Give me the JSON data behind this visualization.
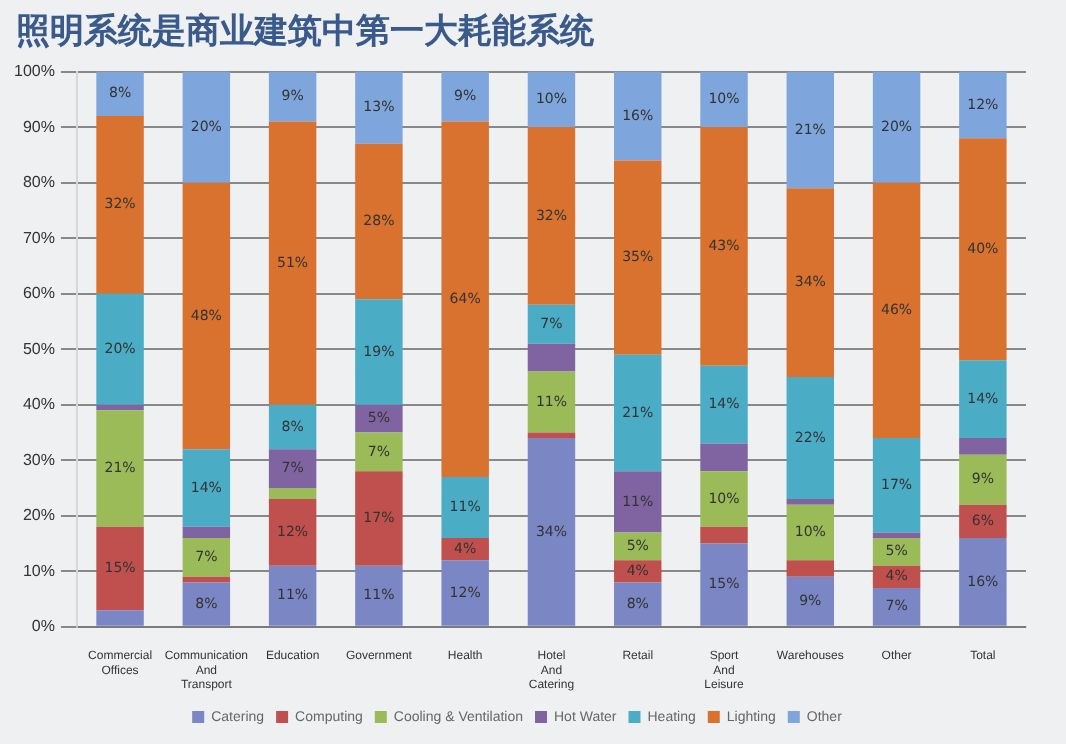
{
  "chart_data": {
    "type": "bar",
    "stacked": true,
    "title": "照明系统是商业建筑中第一大耗能系统",
    "categories": [
      "Commercial Offices",
      "Communication And Transport",
      "Education",
      "Government",
      "Health",
      "Hotel And Catering",
      "Retail",
      "Sport And Leisure",
      "Warehouses",
      "Other",
      "Total"
    ],
    "series": [
      {
        "name": "Catering",
        "color": "#7b86c4",
        "values": [
          3,
          8,
          11,
          11,
          12,
          34,
          8,
          15,
          9,
          7,
          16
        ],
        "value_labels": [
          null,
          "8%",
          "11%",
          "11%",
          "12%",
          "34%",
          "8%",
          "15%",
          "9%",
          "7%",
          "16%"
        ]
      },
      {
        "name": "Computing",
        "color": "#c0504d",
        "values": [
          15,
          1,
          12,
          17,
          4,
          1,
          4,
          3,
          3,
          4,
          6
        ],
        "value_labels": [
          "15%",
          null,
          "12%",
          "17%",
          "4%",
          null,
          "4%",
          null,
          null,
          "4%",
          "6%"
        ]
      },
      {
        "name": "Cooling & Ventilation",
        "color": "#9bbb59",
        "values": [
          21,
          7,
          2,
          7,
          0,
          11,
          5,
          10,
          10,
          5,
          9
        ],
        "value_labels": [
          "21%",
          "7%",
          null,
          "7%",
          null,
          "11%",
          "5%",
          "10%",
          "10%",
          "5%",
          "9%"
        ]
      },
      {
        "name": "Hot Water",
        "color": "#8064a2",
        "values": [
          1,
          2,
          7,
          5,
          0,
          5,
          11,
          5,
          1,
          1,
          3
        ],
        "value_labels": [
          null,
          null,
          "7%",
          "5%",
          null,
          null,
          "11%",
          null,
          null,
          null,
          null
        ]
      },
      {
        "name": "Heating",
        "color": "#4bacc6",
        "values": [
          20,
          14,
          8,
          19,
          11,
          7,
          21,
          14,
          22,
          17,
          14
        ],
        "value_labels": [
          "20%",
          "14%",
          "8%",
          "19%",
          "11%",
          "7%",
          "21%",
          "14%",
          "22%",
          "17%",
          "14%"
        ]
      },
      {
        "name": "Lighting",
        "color": "#d8722e",
        "values": [
          32,
          48,
          51,
          28,
          64,
          32,
          35,
          43,
          34,
          46,
          40
        ],
        "value_labels": [
          "32%",
          "48%",
          "51%",
          "28%",
          "64%",
          "32%",
          "35%",
          "43%",
          "34%",
          "46%",
          "40%"
        ]
      },
      {
        "name": "Other",
        "color": "#7ea6dc",
        "values": [
          8,
          20,
          9,
          13,
          9,
          10,
          16,
          10,
          21,
          20,
          12
        ],
        "value_labels": [
          "8%",
          "20%",
          "9%",
          "13%",
          "9%",
          "10%",
          "16%",
          "10%",
          "21%",
          "20%",
          "12%"
        ]
      }
    ],
    "ylim": [
      0,
      100
    ],
    "yticks": [
      {
        "value": 0,
        "label": "0%"
      },
      {
        "value": 10,
        "label": "10%"
      },
      {
        "value": 20,
        "label": "20%"
      },
      {
        "value": 30,
        "label": "30%"
      },
      {
        "value": 40,
        "label": "40%"
      },
      {
        "value": 50,
        "label": "50%"
      },
      {
        "value": 60,
        "label": "60%"
      },
      {
        "value": 70,
        "label": "70%"
      },
      {
        "value": 80,
        "label": "80%"
      },
      {
        "value": 90,
        "label": "90%"
      },
      {
        "value": 100,
        "label": "100%"
      }
    ],
    "grid": "y",
    "legend": "bottom"
  }
}
